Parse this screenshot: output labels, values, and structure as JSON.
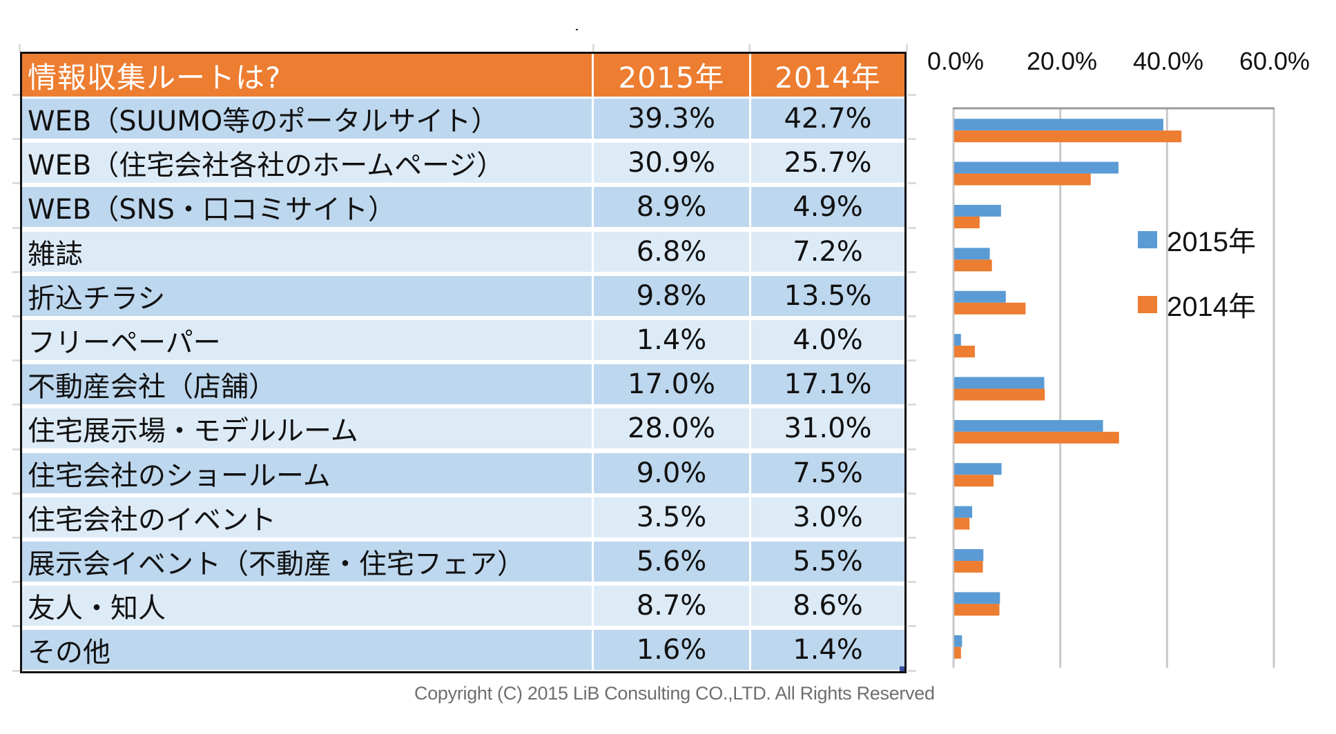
{
  "table": {
    "header": {
      "question": "情報収集ルートは?",
      "col_2015": "2015年",
      "col_2014": "2014年"
    },
    "rows": [
      {
        "label": "WEB（SUUMO等のポータルサイト）",
        "y2015": "39.3%",
        "y2014": "42.7%"
      },
      {
        "label": "WEB（住宅会社各社のホームページ）",
        "y2015": "30.9%",
        "y2014": "25.7%"
      },
      {
        "label": "WEB（SNS・口コミサイト）",
        "y2015": "8.9%",
        "y2014": "4.9%"
      },
      {
        "label": "雑誌",
        "y2015": "6.8%",
        "y2014": "7.2%"
      },
      {
        "label": "折込チラシ",
        "y2015": "9.8%",
        "y2014": "13.5%"
      },
      {
        "label": "フリーペーパー",
        "y2015": "1.4%",
        "y2014": "4.0%"
      },
      {
        "label": "不動産会社（店舗）",
        "y2015": "17.0%",
        "y2014": "17.1%"
      },
      {
        "label": "住宅展示場・モデルルーム",
        "y2015": "28.0%",
        "y2014": "31.0%"
      },
      {
        "label": "住宅会社のショールーム",
        "y2015": "9.0%",
        "y2014": "7.5%"
      },
      {
        "label": "住宅会社のイベント",
        "y2015": "3.5%",
        "y2014": "3.0%"
      },
      {
        "label": "展示会イベント（不動産・住宅フェア）",
        "y2015": "5.6%",
        "y2014": "5.5%"
      },
      {
        "label": "友人・知人",
        "y2015": "8.7%",
        "y2014": "8.6%"
      },
      {
        "label": "その他",
        "y2015": "1.6%",
        "y2014": "1.4%"
      }
    ]
  },
  "chart_data": {
    "type": "bar",
    "orientation": "horizontal",
    "title": "",
    "xlabel": "",
    "ylabel": "",
    "categories": [
      "WEB（SUUMO等のポータルサイト）",
      "WEB（住宅会社各社のホームページ）",
      "WEB（SNS・口コミサイト）",
      "雑誌",
      "折込チラシ",
      "フリーペーパー",
      "不動産会社（店舗）",
      "住宅展示場・モデルルーム",
      "住宅会社のショールーム",
      "住宅会社のイベント",
      "展示会イベント（不動産・住宅フェア）",
      "友人・知人",
      "その他"
    ],
    "series": [
      {
        "name": "2015年",
        "color": "#5B9BD5",
        "values": [
          39.3,
          30.9,
          8.9,
          6.8,
          9.8,
          1.4,
          17.0,
          28.0,
          9.0,
          3.5,
          5.6,
          8.7,
          1.6
        ]
      },
      {
        "name": "2014年",
        "color": "#ED7D31",
        "values": [
          42.7,
          25.7,
          4.9,
          7.2,
          13.5,
          4.0,
          17.1,
          31.0,
          7.5,
          3.0,
          5.5,
          8.6,
          1.4
        ]
      }
    ],
    "xlim": [
      0,
      60
    ],
    "x_ticks": [
      0,
      20,
      40,
      60
    ],
    "x_tick_labels": [
      "0.0%",
      "20.0%",
      "40.0%",
      "60.0%"
    ],
    "x_axis_position": "top",
    "grid": true,
    "legend": {
      "position": "right",
      "entries": [
        "2015年",
        "2014年"
      ]
    }
  },
  "footer": {
    "copyright": "Copyright (C) 2015 LiB Consulting CO.,LTD. All Rights Reserved"
  }
}
